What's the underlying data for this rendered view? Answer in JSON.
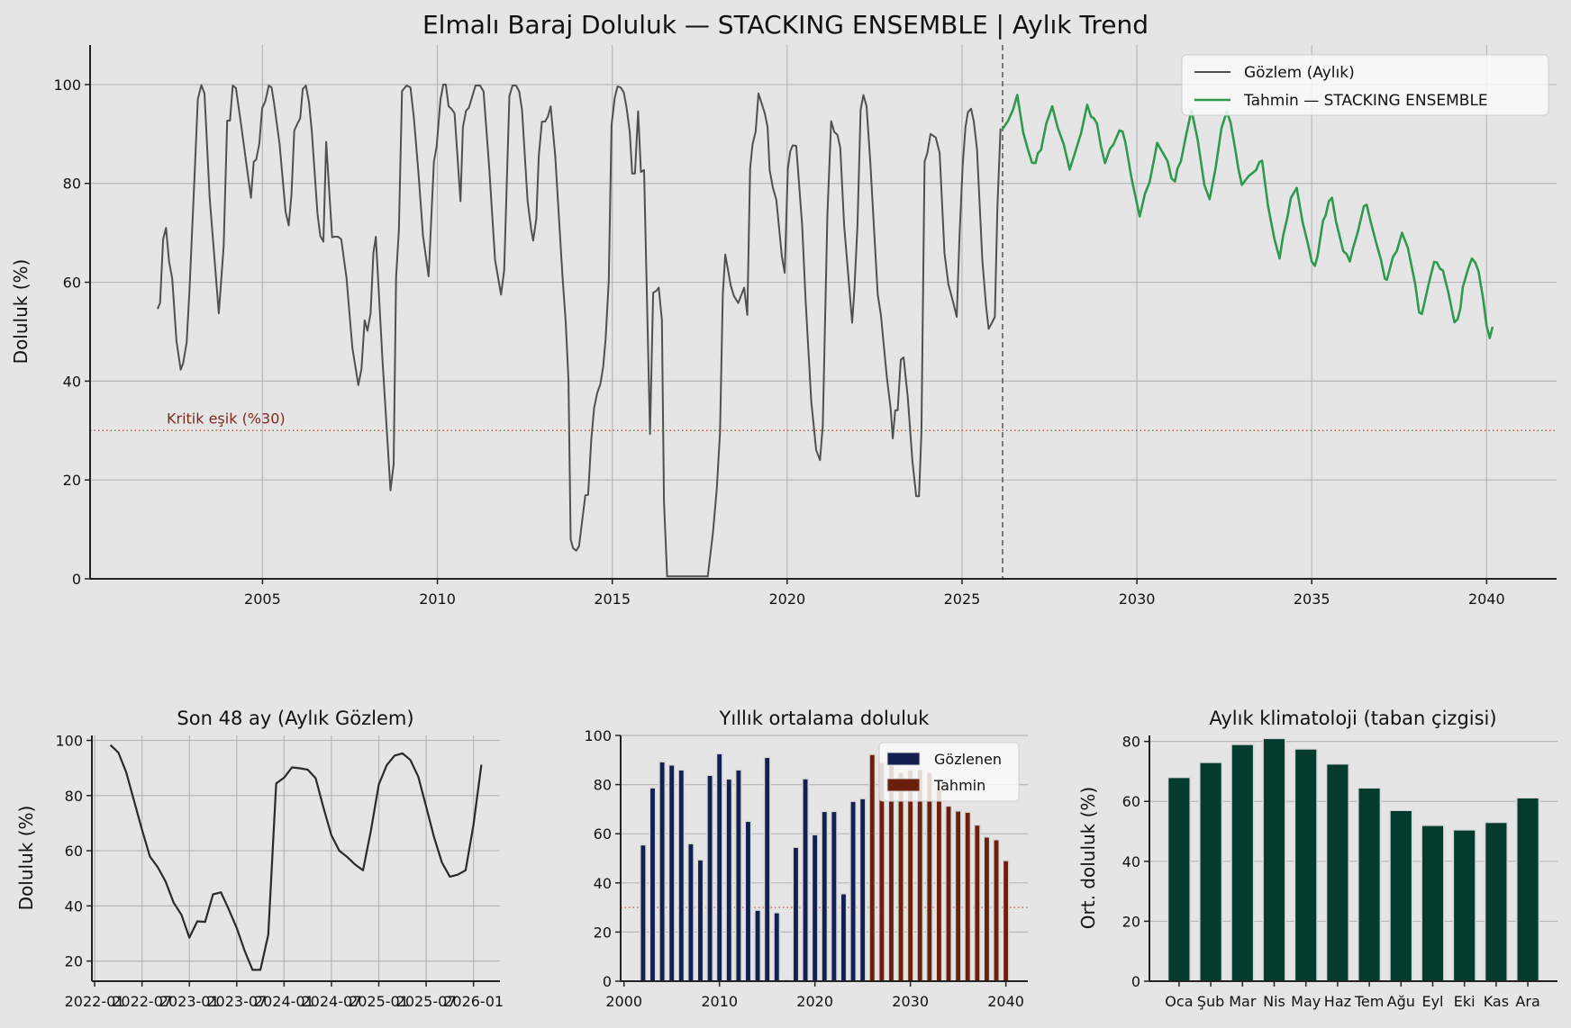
{
  "figure": {
    "title": "Elmalı Baraj Doluluk — STACKING ENSEMBLE | Aylık Trend"
  },
  "colors": {
    "background": "#e5e5e5",
    "grid": "#b0b0b0",
    "observed": "#505050",
    "forecast": "#2e9a4e",
    "threshold": "#c0573f",
    "threshold_text": "#7b2a1e",
    "annual_observed": "#13204f",
    "annual_forecast": "#6b200d",
    "climatology": "#033b2d",
    "last48": "#2a2a2a"
  },
  "chart_data": [
    {
      "type": "line",
      "title": "",
      "xlabel": "",
      "ylabel": "Doluluk (%)",
      "xlim": [
        2000.07,
        2042.0
      ],
      "ylim": [
        0,
        108
      ],
      "xticks": [
        2005,
        2010,
        2015,
        2020,
        2025,
        2030,
        2035,
        2040
      ],
      "yticks": [
        0,
        20,
        40,
        60,
        80,
        100
      ],
      "grid": true,
      "legend": {
        "position": "top-right"
      },
      "threshold": {
        "value": 30,
        "label": "Kritik eşik (%30)"
      },
      "forecast_start": 2026.16,
      "series": [
        {
          "name": "Gözlem (Aylık)",
          "x": [
            2002.0,
            2002.07,
            2002.16,
            2002.24,
            2002.33,
            2002.42,
            2002.54,
            2002.66,
            2002.73,
            2002.83,
            2002.91,
            2003.06,
            2003.15,
            2003.25,
            2003.34,
            2003.49,
            2003.75,
            2003.89,
            2003.99,
            2004.07,
            2004.15,
            2004.24,
            2004.39,
            2004.67,
            2004.75,
            2004.82,
            2004.91,
            2004.99,
            2005.08,
            2005.18,
            2005.26,
            2005.33,
            2005.49,
            2005.66,
            2005.75,
            2005.83,
            2005.91,
            2006.0,
            2006.08,
            2006.15,
            2006.24,
            2006.33,
            2006.41,
            2006.57,
            2006.65,
            2006.74,
            2006.82,
            2006.99,
            2007.05,
            2007.16,
            2007.25,
            2007.4,
            2007.57,
            2007.74,
            2007.83,
            2007.92,
            2008.0,
            2008.09,
            2008.17,
            2008.24,
            2008.43,
            2008.66,
            2008.75,
            2008.82,
            2008.9,
            2008.99,
            2009.12,
            2009.23,
            2009.33,
            2009.46,
            2009.59,
            2009.75,
            2009.9,
            2009.98,
            2010.09,
            2010.17,
            2010.24,
            2010.32,
            2010.4,
            2010.49,
            2010.66,
            2010.73,
            2010.82,
            2010.9,
            2011.09,
            2011.22,
            2011.32,
            2011.48,
            2011.65,
            2011.82,
            2011.91,
            2012.06,
            2012.15,
            2012.25,
            2012.34,
            2012.42,
            2012.58,
            2012.68,
            2012.74,
            2012.83,
            2012.9,
            2012.99,
            2013.08,
            2013.16,
            2013.24,
            2013.37,
            2013.58,
            2013.67,
            2013.75,
            2013.81,
            2013.88,
            2013.97,
            2014.05,
            2014.23,
            2014.31,
            2014.4,
            2014.48,
            2014.57,
            2014.66,
            2014.74,
            2014.81,
            2014.9,
            2014.98,
            2015.07,
            2015.15,
            2015.24,
            2015.33,
            2015.41,
            2015.5,
            2015.57,
            2015.65,
            2015.74,
            2015.82,
            2015.91,
            2015.99,
            2016.08,
            2016.17,
            2016.25,
            2016.33,
            2016.42,
            2016.48,
            2016.57,
            2017.73,
            2017.88,
            2017.99,
            2018.08,
            2018.16,
            2018.23,
            2018.39,
            2018.48,
            2018.6,
            2018.77,
            2018.86,
            2018.94,
            2019.01,
            2019.1,
            2019.18,
            2019.36,
            2019.44,
            2019.5,
            2019.59,
            2019.69,
            2019.85,
            2019.93,
            2020.02,
            2020.09,
            2020.16,
            2020.26,
            2020.43,
            2020.53,
            2020.69,
            2020.83,
            2020.94,
            2021.02,
            2021.15,
            2021.26,
            2021.35,
            2021.44,
            2021.52,
            2021.63,
            2021.72,
            2021.86,
            2021.92,
            2022.01,
            2022.1,
            2022.18,
            2022.27,
            2022.38,
            2022.49,
            2022.59,
            2022.68,
            2022.85,
            2022.96,
            2023.02,
            2023.09,
            2023.16,
            2023.25,
            2023.33,
            2023.45,
            2023.58,
            2023.69,
            2023.77,
            2023.84,
            2023.93,
            2024.01,
            2024.1,
            2024.25,
            2024.36,
            2024.5,
            2024.61,
            2024.74,
            2024.85,
            2024.93,
            2025.02,
            2025.1,
            2025.17,
            2025.26,
            2025.34,
            2025.43,
            2025.58,
            2025.69,
            2025.76,
            2025.84,
            2025.94,
            2026.01,
            2026.1
          ],
          "y": [
            54.6,
            55.8,
            68.7,
            71,
            64.2,
            60.7,
            48.1,
            42.3,
            43.6,
            47.8,
            58.2,
            82,
            97,
            99.9,
            98.2,
            77,
            53.7,
            67.3,
            92.7,
            92.7,
            99.8,
            99.3,
            91.8,
            77.1,
            84.4,
            84.8,
            88.1,
            95.2,
            96.6,
            99.8,
            99.4,
            96.3,
            87.9,
            74.3,
            71.5,
            77.8,
            90.7,
            92.1,
            93.2,
            99.1,
            99.8,
            96.3,
            90.4,
            74,
            69.4,
            68.2,
            88.4,
            69.1,
            69.2,
            69.2,
            68.7,
            61,
            46.7,
            39.2,
            42.5,
            52.3,
            50.2,
            53.7,
            65.9,
            69.2,
            44.3,
            17.9,
            23.2,
            61,
            70.5,
            98.7,
            99.8,
            99.4,
            93.2,
            82,
            69.4,
            61.2,
            84.4,
            87.6,
            97,
            100,
            100,
            95.6,
            95.1,
            94.2,
            76.4,
            91.4,
            94.7,
            95.3,
            99.8,
            99.8,
            98.6,
            83.4,
            64.5,
            57.5,
            62.4,
            97.7,
            99.8,
            99.8,
            98.6,
            94.9,
            76.4,
            70.8,
            68.4,
            72.9,
            85.5,
            92.5,
            92.5,
            93.5,
            95.6,
            85.5,
            61,
            52,
            40.1,
            8,
            6.2,
            5.7,
            6.6,
            16.9,
            17,
            28.2,
            34.5,
            37.6,
            39.4,
            42.9,
            48.5,
            60.3,
            91.8,
            97.3,
            99.6,
            99.4,
            98.4,
            95.3,
            90.4,
            82,
            82,
            94.6,
            82.3,
            82.7,
            57.5,
            29.3,
            57.9,
            58.2,
            58.9,
            52.3,
            15.6,
            0.5,
            0.5,
            9.4,
            18.4,
            29.6,
            57.5,
            65.6,
            59.3,
            57.2,
            55.8,
            58.9,
            53.4,
            83,
            87.9,
            90.5,
            98.2,
            94.2,
            91.4,
            82.7,
            79.2,
            76.7,
            65.2,
            61.9,
            83,
            86.5,
            87.7,
            87.6,
            71.5,
            56.1,
            35.9,
            26.1,
            24,
            31,
            73.6,
            92.6,
            90.4,
            89.8,
            87.2,
            71.5,
            63.8,
            51.8,
            58.2,
            71.5,
            94.9,
            97.9,
            95.6,
            84.1,
            70.1,
            57.5,
            53.4,
            40.8,
            34.5,
            28.4,
            34.1,
            34.1,
            44.3,
            44.8,
            36.6,
            24,
            16.7,
            16.7,
            29.6,
            84.4,
            86.2,
            90,
            89.3,
            86.2,
            65.9,
            59.6,
            56.1,
            53,
            69.4,
            83.7,
            91.4,
            94.4,
            95.1,
            92.5,
            86.9,
            64.5,
            55.1,
            50.6,
            51.6,
            53,
            75,
            91.1
          ]
        },
        {
          "name": "Tahmin — STACKING ENSEMBLE",
          "x": [
            2026.15,
            2026.32,
            2026.46,
            2026.58,
            2026.75,
            2026.88,
            2027.0,
            2027.1,
            2027.17,
            2027.26,
            2027.41,
            2027.58,
            2027.74,
            2027.91,
            2028.08,
            2028.24,
            2028.41,
            2028.58,
            2028.69,
            2028.77,
            2028.86,
            2028.97,
            2029.09,
            2029.23,
            2029.33,
            2029.5,
            2029.59,
            2029.67,
            2029.85,
            2030.08,
            2030.23,
            2030.36,
            2030.49,
            2030.58,
            2030.7,
            2030.88,
            2030.99,
            2031.09,
            2031.16,
            2031.26,
            2031.39,
            2031.56,
            2031.74,
            2031.93,
            2032.08,
            2032.25,
            2032.42,
            2032.57,
            2032.68,
            2032.81,
            2032.9,
            2033.0,
            2033.2,
            2033.41,
            2033.5,
            2033.58,
            2033.75,
            2033.93,
            2034.08,
            2034.18,
            2034.31,
            2034.4,
            2034.57,
            2034.74,
            2034.89,
            2035.0,
            2035.09,
            2035.17,
            2035.32,
            2035.4,
            2035.49,
            2035.58,
            2035.69,
            2035.9,
            2036.0,
            2036.09,
            2036.18,
            2036.31,
            2036.49,
            2036.57,
            2036.68,
            2036.85,
            2036.98,
            2037.09,
            2037.15,
            2037.32,
            2037.43,
            2037.58,
            2037.75,
            2037.96,
            2038.07,
            2038.15,
            2038.35,
            2038.5,
            2038.58,
            2038.67,
            2038.75,
            2038.91,
            2039.08,
            2039.17,
            2039.25,
            2039.32,
            2039.47,
            2039.58,
            2039.68,
            2039.77,
            2039.9,
            2040.0,
            2040.09,
            2040.17
          ],
          "y": [
            90.9,
            92.7,
            94.9,
            97.9,
            90.3,
            87,
            84.2,
            84.1,
            86.1,
            86.8,
            92.1,
            95.6,
            91.2,
            87.9,
            82.8,
            86.4,
            90.3,
            95.9,
            93.5,
            93.2,
            92.1,
            87.6,
            84.1,
            87,
            87.9,
            90.7,
            90.5,
            88.3,
            80.9,
            73.3,
            77.9,
            80.2,
            84.8,
            88.2,
            86.7,
            84.5,
            81,
            80.4,
            83,
            84.5,
            89.1,
            94.8,
            88.8,
            79.7,
            76.8,
            83,
            91.2,
            94.5,
            92.3,
            87,
            83,
            79.7,
            81.5,
            82.7,
            84.3,
            84.6,
            75.4,
            68.8,
            64.8,
            69.4,
            73.3,
            77,
            79.1,
            72.1,
            67.8,
            64.2,
            63.3,
            65.4,
            72.4,
            73.6,
            76.4,
            77.1,
            72.4,
            66.3,
            65.7,
            64.2,
            66.9,
            70,
            75.4,
            75.7,
            72.4,
            67.8,
            64.5,
            60.7,
            60.5,
            65.1,
            66.3,
            70,
            66.9,
            59.6,
            53.9,
            53.6,
            59.9,
            64.1,
            64,
            62.7,
            62.4,
            57.8,
            51.9,
            52.5,
            54.7,
            59,
            62.7,
            64.8,
            63.9,
            62.2,
            56.6,
            51.2,
            48.7,
            51
          ]
        }
      ]
    },
    {
      "type": "line",
      "title": "Son 48 ay (Aylık Gözlem)",
      "xlabel": "",
      "ylabel": "Doluluk (%)",
      "ylim": [
        12.7,
        101.8
      ],
      "yticks": [
        20,
        40,
        60,
        80,
        100
      ],
      "grid": true,
      "xtick_labels": [
        "2022-01",
        "2022-07",
        "2023-01",
        "2023-07",
        "2024-01",
        "2024-07",
        "2025-01",
        "2025-07",
        "2026-01"
      ],
      "start_month": "2022-03",
      "values": [
        98.3,
        95.6,
        88.5,
        78,
        67.7,
        57.9,
        54,
        48.8,
        41.2,
        36.8,
        28.5,
        34.4,
        34.2,
        44.2,
        44.9,
        38.7,
        32,
        23.8,
        16.8,
        16.8,
        29.5,
        84.4,
        86.5,
        90.2,
        89.9,
        89.4,
        86.3,
        75.5,
        65.6,
        60,
        57.7,
        55,
        52.9,
        67.2,
        84,
        91,
        94.5,
        95.3,
        92.9,
        86.9,
        76,
        65,
        55.7,
        50.6,
        51.3,
        52.9,
        69.4,
        91.2
      ]
    },
    {
      "type": "bar",
      "title": "Yıllık ortalama doluluk",
      "xlabel": "",
      "ylabel": "",
      "xlim": [
        1999.65,
        2042.3
      ],
      "ylim": [
        0,
        100
      ],
      "xticks": [
        2000,
        2010,
        2020,
        2030,
        2040
      ],
      "yticks": [
        0,
        20,
        40,
        60,
        80,
        100
      ],
      "grid": true,
      "legend": {
        "position": "top-right"
      },
      "threshold": {
        "value": 30
      },
      "series": [
        {
          "name": "Gözlenen",
          "x": [
            2002,
            2003,
            2004,
            2005,
            2006,
            2007,
            2008,
            2009,
            2010,
            2011,
            2012,
            2013,
            2014,
            2015,
            2016,
            2017,
            2018,
            2019,
            2020,
            2021,
            2022,
            2023,
            2024,
            2025
          ],
          "values": [
            55.5,
            78.7,
            89.3,
            88,
            86,
            56,
            49.4,
            83.8,
            92.6,
            82.3,
            86,
            65.1,
            28.9,
            91.1,
            27.9,
            0.6,
            54.5,
            82.4,
            59.6,
            69.1,
            69.1,
            35.6,
            73.2,
            74.3
          ]
        },
        {
          "name": "Tahmin",
          "x": [
            2026,
            2027,
            2028,
            2029,
            2030,
            2031,
            2032,
            2033,
            2034,
            2035,
            2036,
            2037,
            2038,
            2039,
            2040
          ],
          "values": [
            92.3,
            89,
            88,
            85,
            86,
            86.3,
            85,
            80,
            71.3,
            69.3,
            68.8,
            63.6,
            58.7,
            57.6,
            49.1
          ]
        }
      ]
    },
    {
      "type": "bar",
      "title": "Aylık klimatoloji (taban çizgisi)",
      "xlabel": "",
      "ylabel": "Ort. doluluk (%)",
      "ylim": [
        0,
        82
      ],
      "yticks": [
        0,
        20,
        40,
        60,
        80
      ],
      "grid": true,
      "categories": [
        "Oca",
        "Şub",
        "Mar",
        "Nis",
        "May",
        "Haz",
        "Tem",
        "Ağu",
        "Eyl",
        "Eki",
        "Kas",
        "Ara"
      ],
      "values": [
        68,
        73,
        79,
        81,
        77.5,
        72.5,
        64.5,
        57,
        52,
        50.5,
        53,
        61.2
      ]
    }
  ]
}
